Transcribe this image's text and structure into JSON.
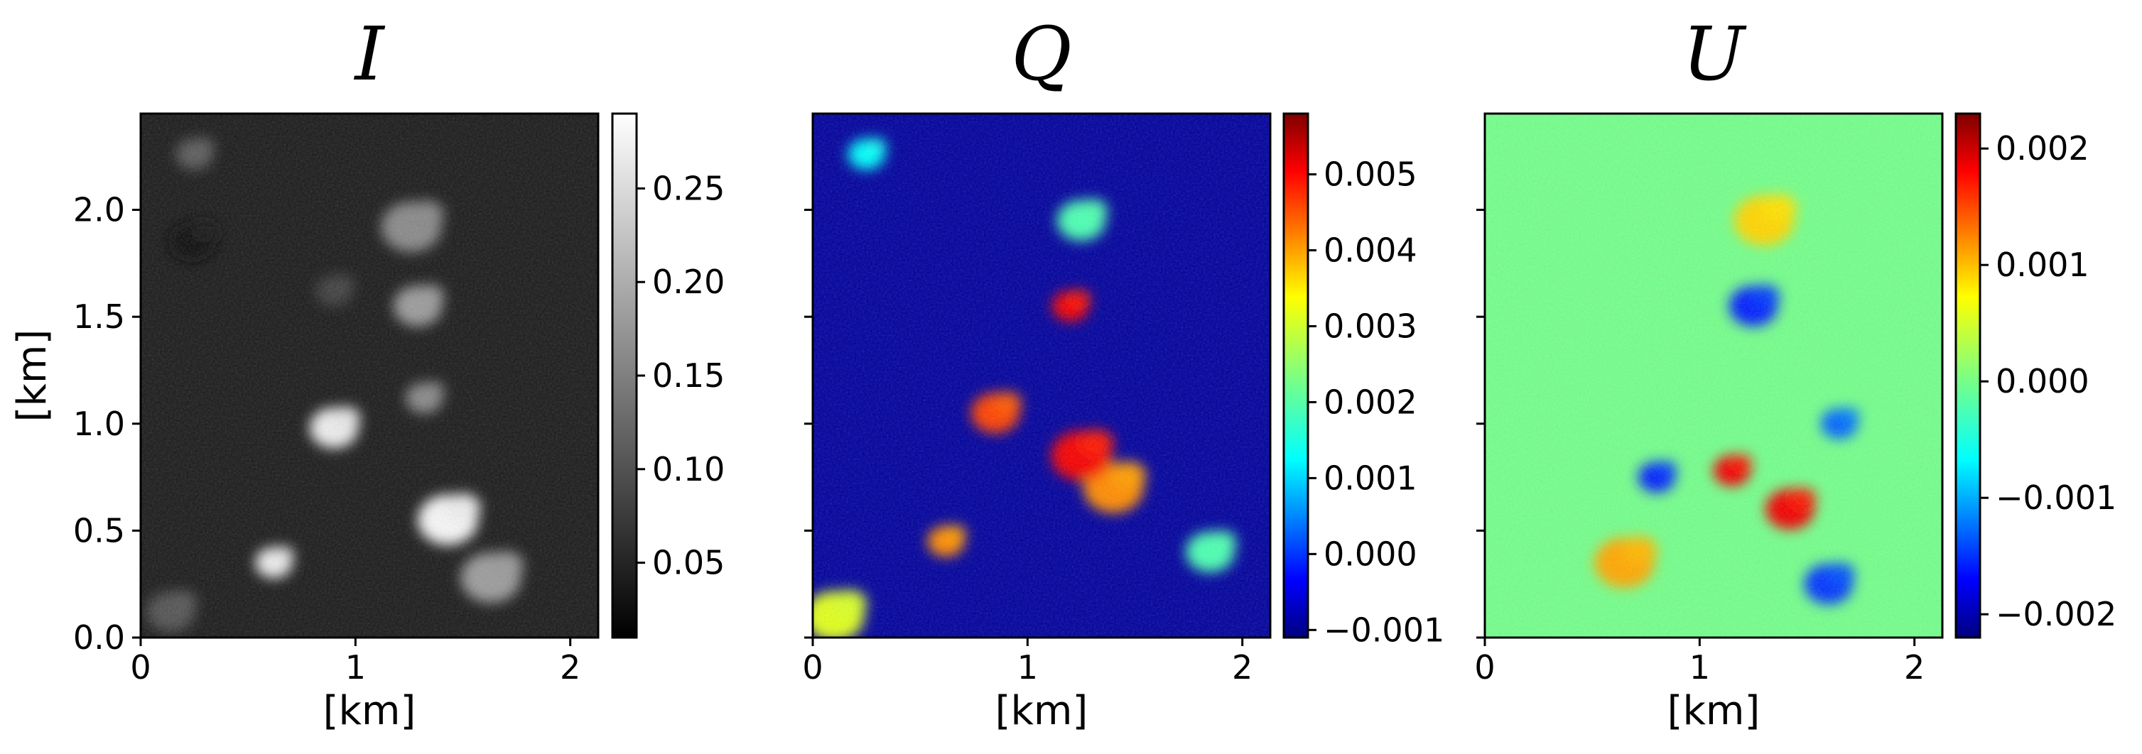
{
  "chart_data": [
    {
      "type": "heatmap",
      "title": "I",
      "xlabel": "[km]",
      "ylabel": "[km]",
      "xlim": [
        0,
        2.13
      ],
      "ylim": [
        0,
        2.45
      ],
      "xticks": [
        "0",
        "1",
        "2"
      ],
      "yticks": [
        "0.0",
        "0.5",
        "1.0",
        "1.5",
        "2.0"
      ],
      "colormap": "gray",
      "colorbar_range": [
        0.01,
        0.29
      ],
      "colorbar_ticks": [
        "0.05",
        "0.10",
        "0.15",
        "0.20",
        "0.25"
      ],
      "background_value": 0.04,
      "features": [
        {
          "x": 0.62,
          "y": 0.35,
          "value": 0.27
        },
        {
          "x": 0.9,
          "y": 0.98,
          "value": 0.27
        },
        {
          "x": 1.43,
          "y": 0.55,
          "value": 0.28
        },
        {
          "x": 1.32,
          "y": 1.12,
          "value": 0.16
        },
        {
          "x": 1.29,
          "y": 1.55,
          "value": 0.18
        },
        {
          "x": 1.26,
          "y": 1.92,
          "value": 0.16
        },
        {
          "x": 0.25,
          "y": 2.26,
          "value": 0.11
        },
        {
          "x": 0.24,
          "y": 1.85,
          "value": 0.02
        },
        {
          "x": 1.63,
          "y": 0.28,
          "value": 0.18
        },
        {
          "x": 0.9,
          "y": 1.62,
          "value": 0.08
        },
        {
          "x": 0.14,
          "y": 0.12,
          "value": 0.1
        }
      ]
    },
    {
      "type": "heatmap",
      "title": "Q",
      "xlabel": "[km]",
      "ylabel": "",
      "xlim": [
        0,
        2.13
      ],
      "ylim": [
        0,
        2.45
      ],
      "xticks": [
        "0",
        "1",
        "2"
      ],
      "yticks": [],
      "colormap": "jet",
      "colorbar_range": [
        -0.0011,
        0.0058
      ],
      "colorbar_ticks": [
        "−0.001",
        "0.000",
        "0.001",
        "0.002",
        "0.003",
        "0.004",
        "0.005"
      ],
      "background_value": -0.0009,
      "features": [
        {
          "x": 0.62,
          "y": 0.45,
          "value": 0.004
        },
        {
          "x": 0.85,
          "y": 1.05,
          "value": 0.0045
        },
        {
          "x": 1.4,
          "y": 0.7,
          "value": 0.004
        },
        {
          "x": 1.2,
          "y": 1.55,
          "value": 0.005
        },
        {
          "x": 1.25,
          "y": 1.95,
          "value": 0.002
        },
        {
          "x": 1.25,
          "y": 0.85,
          "value": 0.005
        },
        {
          "x": 0.25,
          "y": 2.26,
          "value": 0.0015
        },
        {
          "x": 1.85,
          "y": 0.4,
          "value": 0.002
        },
        {
          "x": 0.1,
          "y": 0.1,
          "value": 0.003
        }
      ]
    },
    {
      "type": "heatmap",
      "title": "U",
      "xlabel": "[km]",
      "ylabel": "",
      "xlim": [
        0,
        2.13
      ],
      "ylim": [
        0,
        2.45
      ],
      "xticks": [
        "0",
        "1",
        "2"
      ],
      "yticks": [],
      "colormap": "jet",
      "colorbar_range": [
        -0.0022,
        0.0023
      ],
      "colorbar_ticks": [
        "−0.002",
        "−0.001",
        "0.000",
        "0.001",
        "0.002"
      ],
      "background_value": 0.0,
      "features": [
        {
          "x": 1.15,
          "y": 0.78,
          "value": 0.0018
        },
        {
          "x": 1.42,
          "y": 0.6,
          "value": 0.0018
        },
        {
          "x": 0.65,
          "y": 0.35,
          "value": 0.001
        },
        {
          "x": 0.8,
          "y": 0.75,
          "value": -0.0015
        },
        {
          "x": 1.25,
          "y": 1.55,
          "value": -0.0015
        },
        {
          "x": 1.3,
          "y": 1.95,
          "value": 0.0008
        },
        {
          "x": 1.65,
          "y": 1.0,
          "value": -0.0012
        },
        {
          "x": 1.6,
          "y": 0.25,
          "value": -0.0014
        }
      ]
    }
  ]
}
